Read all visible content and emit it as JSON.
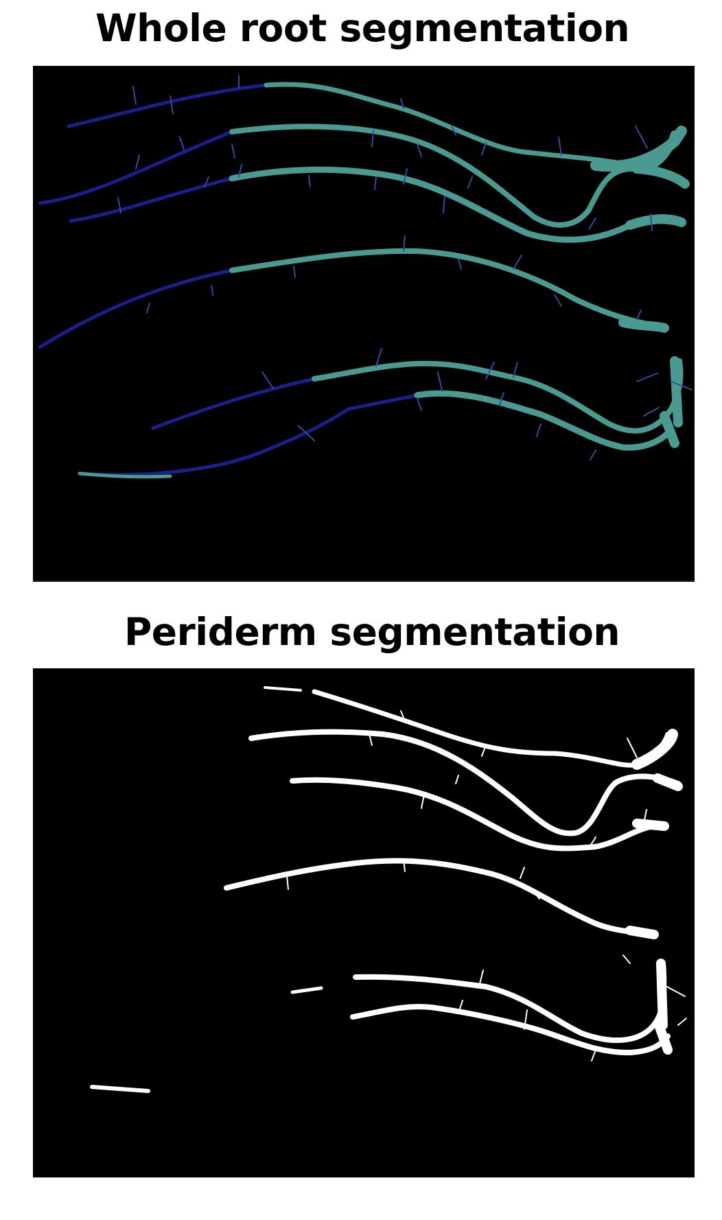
{
  "figure": {
    "panels": [
      {
        "title": "Whole root segmentation",
        "colors": {
          "background": "#000000",
          "immature_root": "#1a1f8c",
          "mature_root": "#4a9a92",
          "lateral_root": "#2d4f9e"
        }
      },
      {
        "title": "Periderm segmentation",
        "colors": {
          "background": "#000000",
          "periderm": "#ffffff"
        }
      }
    ]
  }
}
